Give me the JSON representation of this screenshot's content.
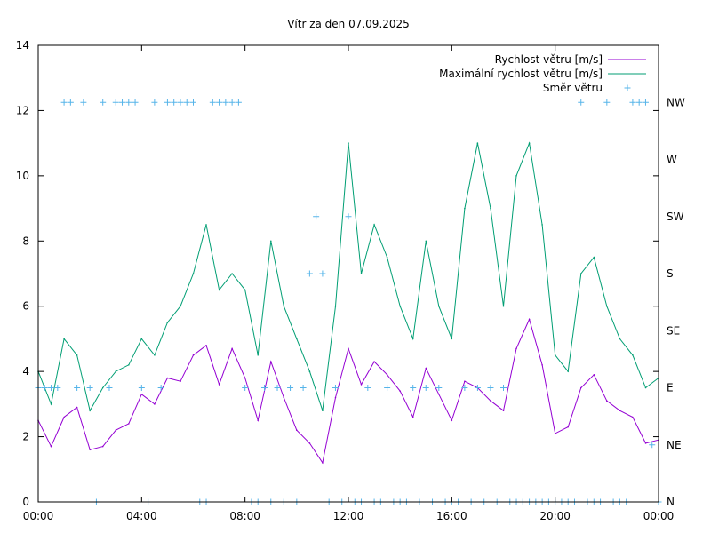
{
  "chart_data": {
    "type": "line",
    "title": "Vítr za den 07.09.2025",
    "x_ticks": [
      "00:00",
      "04:00",
      "08:00",
      "12:00",
      "16:00",
      "20:00",
      "00:00"
    ],
    "x_range_hours": [
      0,
      24
    ],
    "y_range": [
      0,
      14
    ],
    "y_ticks": [
      "0",
      "2",
      "4",
      "6",
      "8",
      "10",
      "12",
      "14"
    ],
    "y2_categories": [
      "N",
      "NE",
      "E",
      "SE",
      "S",
      "SW",
      "W",
      "NW"
    ],
    "grid": false,
    "legend_position": "top-right",
    "series": [
      {
        "name": "Rychlost větru [m/s]",
        "color": "#9400d3",
        "style": "line",
        "axis": "y",
        "x": [
          0,
          0.5,
          1,
          1.5,
          2,
          2.5,
          3,
          3.5,
          4,
          4.5,
          5,
          5.5,
          6,
          6.5,
          7,
          7.5,
          8,
          8.5,
          9,
          9.5,
          10,
          10.5,
          11,
          11.5,
          12,
          12.5,
          13,
          13.5,
          14,
          14.5,
          15,
          15.5,
          16,
          16.5,
          17,
          17.5,
          18,
          18.5,
          19,
          19.5,
          20,
          20.5,
          21,
          21.5,
          22,
          22.5,
          23,
          23.5,
          24
        ],
        "y": [
          2.5,
          1.7,
          2.6,
          2.9,
          1.6,
          1.7,
          2.2,
          2.4,
          3.3,
          3.0,
          3.8,
          3.7,
          4.5,
          4.8,
          3.6,
          4.7,
          3.8,
          2.5,
          4.3,
          3.2,
          2.2,
          1.8,
          1.2,
          3.2,
          4.7,
          3.6,
          4.3,
          3.9,
          3.4,
          2.6,
          4.1,
          3.3,
          2.5,
          3.7,
          3.5,
          3.1,
          2.8,
          4.7,
          5.6,
          4.2,
          2.1,
          2.3,
          3.5,
          3.9,
          3.1,
          2.8,
          2.6,
          1.8,
          1.9
        ]
      },
      {
        "name": "Maximální rychlost větru [m/s]",
        "color": "#009e73",
        "style": "line",
        "axis": "y",
        "x": [
          0,
          0.5,
          1,
          1.5,
          2,
          2.5,
          3,
          3.5,
          4,
          4.5,
          5,
          5.5,
          6,
          6.5,
          7,
          7.5,
          8,
          8.5,
          9,
          9.5,
          10,
          10.5,
          11,
          11.5,
          12,
          12.5,
          13,
          13.5,
          14,
          14.5,
          15,
          15.5,
          16,
          16.5,
          17,
          17.5,
          18,
          18.5,
          19,
          19.5,
          20,
          20.5,
          21,
          21.5,
          22,
          22.5,
          23,
          23.5,
          24
        ],
        "y": [
          4.0,
          3.0,
          5.0,
          4.5,
          2.8,
          3.5,
          4.0,
          4.2,
          5.0,
          4.5,
          5.5,
          6.0,
          7.0,
          8.5,
          6.5,
          7.0,
          6.5,
          4.5,
          8.0,
          6.0,
          5.0,
          4.0,
          2.8,
          6.0,
          11.0,
          7.0,
          8.5,
          7.5,
          6.0,
          5.0,
          8.0,
          6.0,
          5.0,
          9.0,
          11.0,
          9.0,
          6.0,
          10.0,
          11.0,
          8.5,
          4.5,
          4.0,
          7.0,
          7.5,
          6.0,
          5.0,
          4.5,
          3.5,
          3.8
        ]
      },
      {
        "name": "Směr větru",
        "color": "#56b4e9",
        "style": "points",
        "axis": "y2",
        "points": [
          [
            "0:00",
            "E"
          ],
          [
            "0:15",
            "E"
          ],
          [
            "0:30",
            "E"
          ],
          [
            "0:45",
            "E"
          ],
          [
            "1:00",
            "NW"
          ],
          [
            "1:15",
            "NW"
          ],
          [
            "1:30",
            "E"
          ],
          [
            "1:45",
            "NW"
          ],
          [
            "2:00",
            "E"
          ],
          [
            "2:15",
            "N"
          ],
          [
            "2:30",
            "NW"
          ],
          [
            "2:45",
            "E"
          ],
          [
            "3:00",
            "NW"
          ],
          [
            "3:15",
            "NW"
          ],
          [
            "3:30",
            "NW"
          ],
          [
            "3:45",
            "NW"
          ],
          [
            "4:00",
            "E"
          ],
          [
            "4:15",
            "N"
          ],
          [
            "4:30",
            "NW"
          ],
          [
            "4:45",
            "E"
          ],
          [
            "5:00",
            "NW"
          ],
          [
            "5:15",
            "NW"
          ],
          [
            "5:30",
            "NW"
          ],
          [
            "5:45",
            "NW"
          ],
          [
            "6:00",
            "NW"
          ],
          [
            "6:15",
            "N"
          ],
          [
            "6:30",
            "N"
          ],
          [
            "6:45",
            "NW"
          ],
          [
            "7:00",
            "NW"
          ],
          [
            "7:15",
            "NW"
          ],
          [
            "7:30",
            "NW"
          ],
          [
            "7:45",
            "NW"
          ],
          [
            "8:00",
            "E"
          ],
          [
            "8:15",
            "N"
          ],
          [
            "8:30",
            "N"
          ],
          [
            "8:45",
            "E"
          ],
          [
            "9:00",
            "N"
          ],
          [
            "9:15",
            "E"
          ],
          [
            "9:30",
            "N"
          ],
          [
            "9:45",
            "E"
          ],
          [
            "10:00",
            "N"
          ],
          [
            "10:15",
            "E"
          ],
          [
            "10:30",
            "S"
          ],
          [
            "10:45",
            "SW"
          ],
          [
            "11:00",
            "S"
          ],
          [
            "11:15",
            "N"
          ],
          [
            "11:30",
            "E"
          ],
          [
            "11:45",
            "N"
          ],
          [
            "12:00",
            "SW"
          ],
          [
            "12:15",
            "N"
          ],
          [
            "12:30",
            "N"
          ],
          [
            "12:45",
            "E"
          ],
          [
            "13:00",
            "N"
          ],
          [
            "13:15",
            "N"
          ],
          [
            "13:30",
            "E"
          ],
          [
            "13:45",
            "N"
          ],
          [
            "14:00",
            "N"
          ],
          [
            "14:15",
            "N"
          ],
          [
            "14:30",
            "E"
          ],
          [
            "14:45",
            "N"
          ],
          [
            "15:00",
            "E"
          ],
          [
            "15:15",
            "N"
          ],
          [
            "15:30",
            "E"
          ],
          [
            "15:45",
            "N"
          ],
          [
            "16:00",
            "N"
          ],
          [
            "16:15",
            "N"
          ],
          [
            "16:30",
            "E"
          ],
          [
            "16:45",
            "N"
          ],
          [
            "17:00",
            "E"
          ],
          [
            "17:15",
            "N"
          ],
          [
            "17:30",
            "E"
          ],
          [
            "17:45",
            "N"
          ],
          [
            "18:00",
            "E"
          ],
          [
            "18:15",
            "N"
          ],
          [
            "18:30",
            "N"
          ],
          [
            "18:45",
            "N"
          ],
          [
            "19:00",
            "N"
          ],
          [
            "19:15",
            "N"
          ],
          [
            "19:30",
            "N"
          ],
          [
            "19:45",
            "N"
          ],
          [
            "20:00",
            "N"
          ],
          [
            "20:15",
            "N"
          ],
          [
            "20:30",
            "N"
          ],
          [
            "20:45",
            "N"
          ],
          [
            "21:00",
            "NW"
          ],
          [
            "21:15",
            "N"
          ],
          [
            "21:30",
            "N"
          ],
          [
            "21:45",
            "N"
          ],
          [
            "22:00",
            "NW"
          ],
          [
            "22:15",
            "N"
          ],
          [
            "22:30",
            "N"
          ],
          [
            "22:45",
            "N"
          ],
          [
            "23:00",
            "NW"
          ],
          [
            "23:15",
            "NW"
          ],
          [
            "23:30",
            "NW"
          ],
          [
            "23:45",
            "NE"
          ],
          [
            "24:00",
            "N"
          ]
        ]
      }
    ]
  }
}
